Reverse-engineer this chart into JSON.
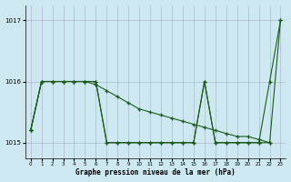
{
  "title": "Graphe pression niveau de la mer (hPa)",
  "bg_color": "#cde8f0",
  "grid_color": "#aaaacc",
  "line_color": "#1a5c1a",
  "x_hours": [
    0,
    1,
    2,
    3,
    4,
    5,
    6,
    7,
    8,
    9,
    10,
    11,
    12,
    13,
    14,
    15,
    16,
    17,
    18,
    19,
    20,
    21,
    22,
    23
  ],
  "line_a": [
    1015.2,
    1016.0,
    1016.0,
    1016.0,
    1016.0,
    1016.0,
    1016.0,
    1015.0,
    1015.0,
    1015.0,
    1015.0,
    1015.0,
    1015.0,
    1015.0,
    1015.0,
    1015.0,
    1016.0,
    1015.0,
    1015.0,
    1015.0,
    1015.0,
    1015.0,
    1015.0,
    1017.0
  ],
  "line_b": [
    1015.2,
    1016.0,
    1016.0,
    1016.0,
    1016.0,
    1016.0,
    1016.0,
    1015.0,
    1015.0,
    1015.0,
    1015.0,
    1015.0,
    1015.0,
    1015.0,
    1015.0,
    1015.0,
    1016.0,
    1015.0,
    1015.0,
    1015.0,
    1015.0,
    1015.0,
    1016.0,
    1017.0
  ],
  "line_c_x": [
    0,
    1,
    2,
    3,
    4,
    5,
    6,
    7,
    8,
    9,
    10,
    11,
    12,
    13,
    14,
    15,
    16,
    17,
    18,
    19,
    20,
    21,
    22
  ],
  "line_c_y": [
    1015.2,
    1016.0,
    1016.0,
    1016.0,
    1016.0,
    1016.0,
    1015.95,
    1015.85,
    1015.75,
    1015.65,
    1015.55,
    1015.5,
    1015.45,
    1015.4,
    1015.35,
    1015.3,
    1015.25,
    1015.2,
    1015.15,
    1015.1,
    1015.1,
    1015.05,
    1015.0
  ],
  "ylim": [
    1014.75,
    1017.25
  ],
  "yticks": [
    1015,
    1016,
    1017
  ],
  "xlim": [
    -0.5,
    23.5
  ],
  "figsize": [
    3.2,
    2.0
  ],
  "dpi": 100
}
